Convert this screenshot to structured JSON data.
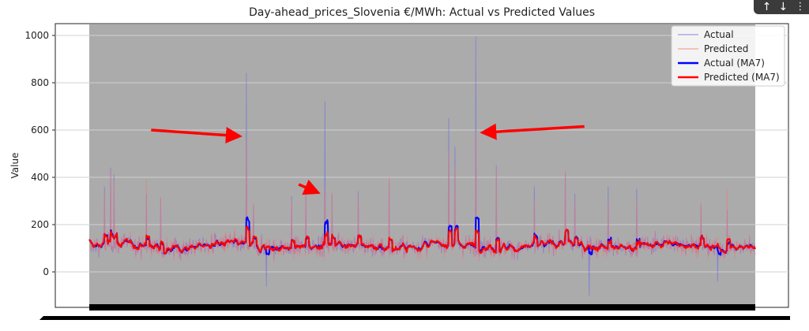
{
  "chart_data": {
    "type": "line",
    "title": "Day-ahead_prices_Slovenia €/MWh: Actual vs Predicted Values",
    "xlabel": "",
    "ylabel": "Value",
    "ylim": [
      -150,
      1050
    ],
    "yticks": [
      0,
      200,
      400,
      600,
      800,
      1000
    ],
    "grid": true,
    "legend_position": "upper-right",
    "background_color": "#ababab",
    "x_tick_labels": "overlapping / illegible (rendered as a solid black band)",
    "n_points": 1400,
    "baseline": {
      "mean": 110,
      "noise_range": [
        -40,
        230
      ]
    },
    "series": [
      {
        "name": "Actual",
        "color": "#6a6ae6",
        "alpha": 0.55,
        "width": 1
      },
      {
        "name": "Predicted",
        "color": "#f07878",
        "alpha": 0.55,
        "width": 1
      },
      {
        "name": "Actual (MA7)",
        "color": "#0000ff",
        "alpha": 1.0,
        "width": 2
      },
      {
        "name": "Predicted (MA7)",
        "color": "#ff0000",
        "alpha": 1.0,
        "width": 2
      }
    ],
    "spikes": [
      {
        "index": 32,
        "actual": 360,
        "predicted": 330
      },
      {
        "index": 45,
        "actual": 440,
        "predicted": 420
      },
      {
        "index": 52,
        "actual": 410,
        "predicted": 390
      },
      {
        "index": 120,
        "actual": 330,
        "predicted": 390
      },
      {
        "index": 150,
        "actual": 310,
        "predicted": 320
      },
      {
        "index": 330,
        "actual": 840,
        "predicted": 560
      },
      {
        "index": 345,
        "actual": 285,
        "predicted": 290
      },
      {
        "index": 425,
        "actual": 320,
        "predicted": 300
      },
      {
        "index": 455,
        "actual": 330,
        "predicted": 340
      },
      {
        "index": 495,
        "actual": 720,
        "predicted": 360
      },
      {
        "index": 510,
        "actual": 330,
        "predicted": 340
      },
      {
        "index": 565,
        "actual": 340,
        "predicted": 320
      },
      {
        "index": 630,
        "actual": 380,
        "predicted": 400
      },
      {
        "index": 755,
        "actual": 650,
        "predicted": 510
      },
      {
        "index": 768,
        "actual": 530,
        "predicted": 450
      },
      {
        "index": 812,
        "actual": 995,
        "predicted": 590
      },
      {
        "index": 855,
        "actual": 450,
        "predicted": 430
      },
      {
        "index": 935,
        "actual": 360,
        "predicted": 300
      },
      {
        "index": 1000,
        "actual": 420,
        "predicted": 430
      },
      {
        "index": 1020,
        "actual": 330,
        "predicted": 300
      },
      {
        "index": 1090,
        "actual": 360,
        "predicted": 300
      },
      {
        "index": 1150,
        "actual": 350,
        "predicted": 300
      },
      {
        "index": 1285,
        "actual": 280,
        "predicted": 300
      },
      {
        "index": 1340,
        "actual": 260,
        "predicted": 350
      }
    ],
    "dips": [
      {
        "index": 372,
        "actual": -60
      },
      {
        "index": 1050,
        "actual": -100
      },
      {
        "index": 1320,
        "actual": -40
      }
    ],
    "annotations": [
      {
        "type": "arrow",
        "color": "#ff0000",
        "target": {
          "x_index": 330,
          "y": 575
        },
        "from": {
          "x_index": 130,
          "y": 600
        }
      },
      {
        "type": "arrow",
        "color": "#ff0000",
        "target": {
          "x_index": 495,
          "y": 340
        },
        "from": {
          "x_index": 440,
          "y": 370
        }
      },
      {
        "type": "arrow",
        "color": "#ff0000",
        "target": {
          "x_index": 812,
          "y": 590
        },
        "from": {
          "x_index": 1040,
          "y": 615
        }
      }
    ]
  },
  "nav": {
    "up": "↑",
    "down": "↓",
    "more": "⋮"
  }
}
